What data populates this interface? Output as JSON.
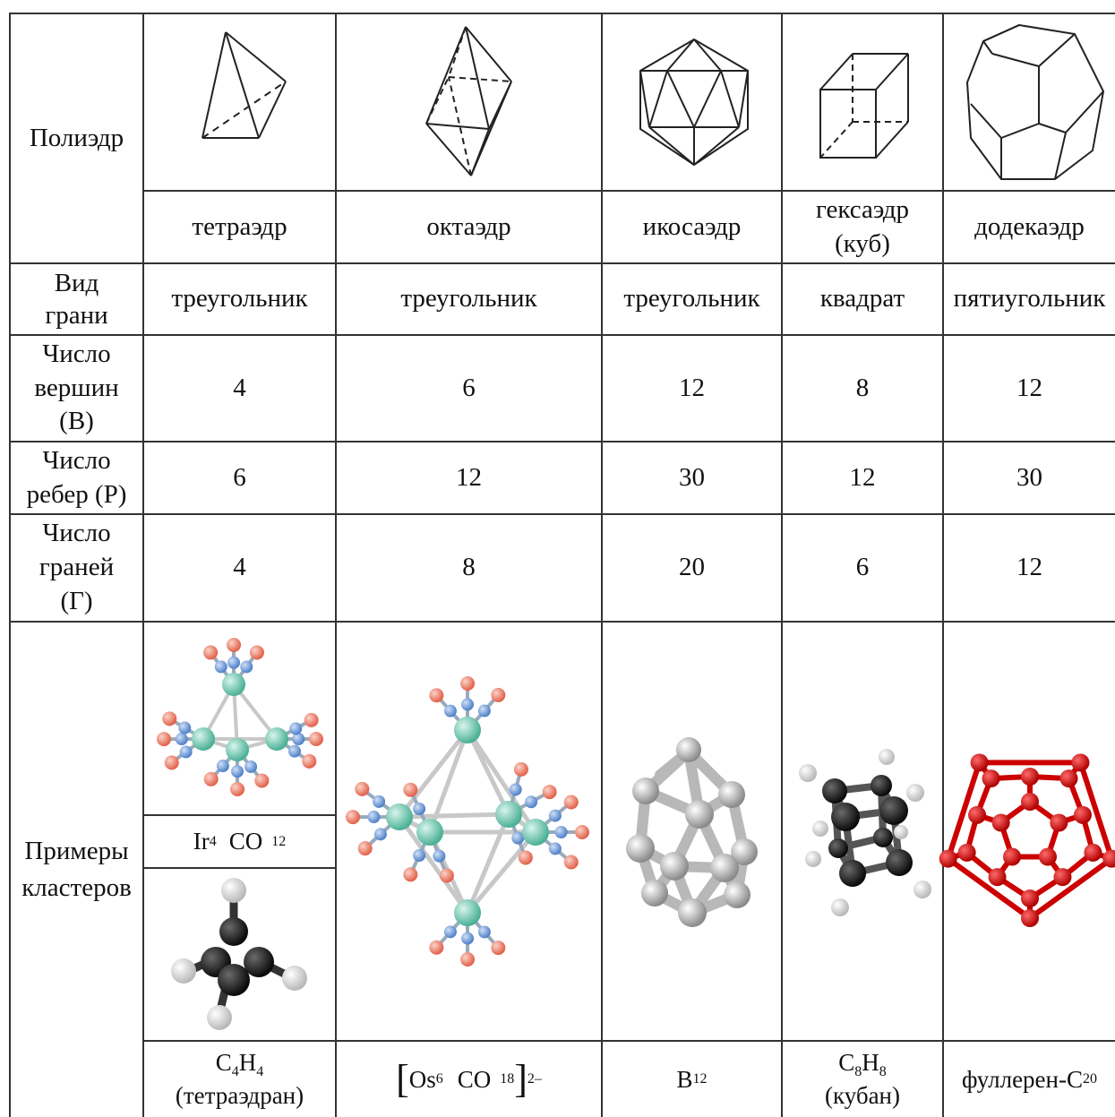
{
  "header_col": {
    "polyhedron": "Полиэдр",
    "face_type": [
      "Вид",
      "грани"
    ],
    "vertices": [
      "Число",
      "вершин",
      "(В)"
    ],
    "edges": [
      "Число",
      "ребер (Р)"
    ],
    "faces": [
      "Число",
      "граней",
      "(Г)"
    ],
    "examples": [
      "Примеры",
      "кластеров"
    ]
  },
  "names": {
    "tetra": "тетраэдр",
    "octa": "октаэдр",
    "icosa": "икосаэдр",
    "hexa": [
      "гексаэдр",
      "(куб)"
    ],
    "dodeca": "додекаэдр"
  },
  "face_types": [
    "треугольник",
    "треугольник",
    "треугольник",
    "квадрат",
    "пятиугольник"
  ],
  "vertex_counts": [
    "4",
    "6",
    "12",
    "8",
    "12"
  ],
  "edge_counts": [
    "6",
    "12",
    "30",
    "12",
    "30"
  ],
  "face_counts": [
    "4",
    "8",
    "20",
    "6",
    "12"
  ],
  "clusters": {
    "ir4": {
      "el": "Ir",
      "n": "4",
      "co": "CO",
      "k": "12"
    },
    "c4h4": {
      "c": "C",
      "cn": "4",
      "h": "H",
      "hn": "4",
      "name": "(тетраэдран)"
    },
    "os6": {
      "lb": "[",
      "el": "Os",
      "n": "6",
      "co": "CO",
      "k": "18",
      "rb": "]",
      "charge": "2–"
    },
    "b12": {
      "el": "B",
      "n": "12"
    },
    "c8h8": {
      "c": "C",
      "cn": "8",
      "h": "H",
      "hn": "8",
      "name": "(кубан)"
    },
    "c20": {
      "prefix": "фуллерен-",
      "el": "C",
      "n": "20"
    }
  },
  "colors": {
    "line": "#333333",
    "metal": "#5cc4a8",
    "carbon_co": "#5f8fd0",
    "oxygen": "#e86a55",
    "grey_atom": "#a8a8a8",
    "black_atom": "#1a1a1a",
    "red_atom": "#d01010"
  },
  "icons": [
    "tetrahedron-icon",
    "octahedron-icon",
    "icosahedron-icon",
    "cube-icon",
    "dodecahedron-icon",
    "ir4-co12-model-icon",
    "c4h4-model-icon",
    "os6-co18-model-icon",
    "b12-model-icon",
    "cubane-model-icon",
    "fullerene-c20-model-icon"
  ]
}
